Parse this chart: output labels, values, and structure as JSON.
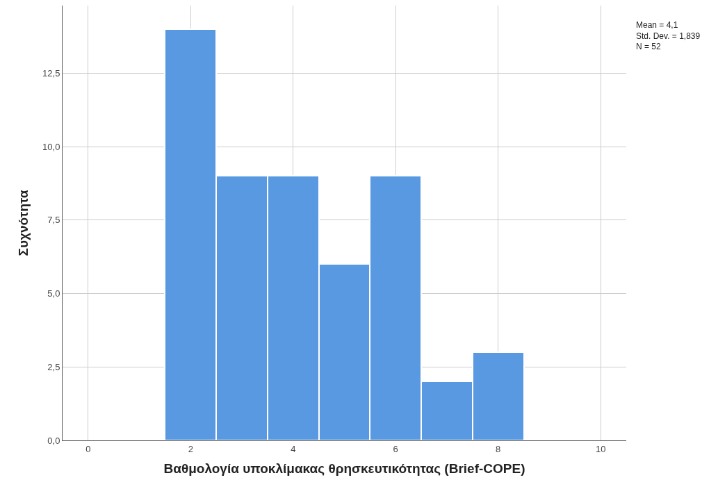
{
  "chart_data": {
    "type": "histogram",
    "xlabel": "Βαθμολογία υποκλίμακας θρησκευτικότητας (Brief-COPE)",
    "ylabel": "Συχνότητα",
    "bins": [
      1.5,
      2.5,
      3.5,
      4.5,
      5.5,
      6.5,
      7.5,
      8.5
    ],
    "values": [
      14,
      9,
      9,
      6,
      9,
      2,
      3
    ],
    "color": "#5899e2",
    "xlim": [
      -0.5,
      10.5
    ],
    "xticks": [
      0,
      2,
      4,
      6,
      8,
      10
    ],
    "ylim": [
      0,
      14.8
    ],
    "yticks": [
      {
        "value": 0,
        "label": "0,0"
      },
      {
        "value": 2.5,
        "label": "2,5"
      },
      {
        "value": 5,
        "label": "5,0"
      },
      {
        "value": 7.5,
        "label": "7,5"
      },
      {
        "value": 10,
        "label": "10,0"
      },
      {
        "value": 12.5,
        "label": "12,5"
      }
    ],
    "grid": true,
    "annotations": [
      "Mean = 4,1\nStd. Dev. = 1,839\nN = 52"
    ]
  }
}
